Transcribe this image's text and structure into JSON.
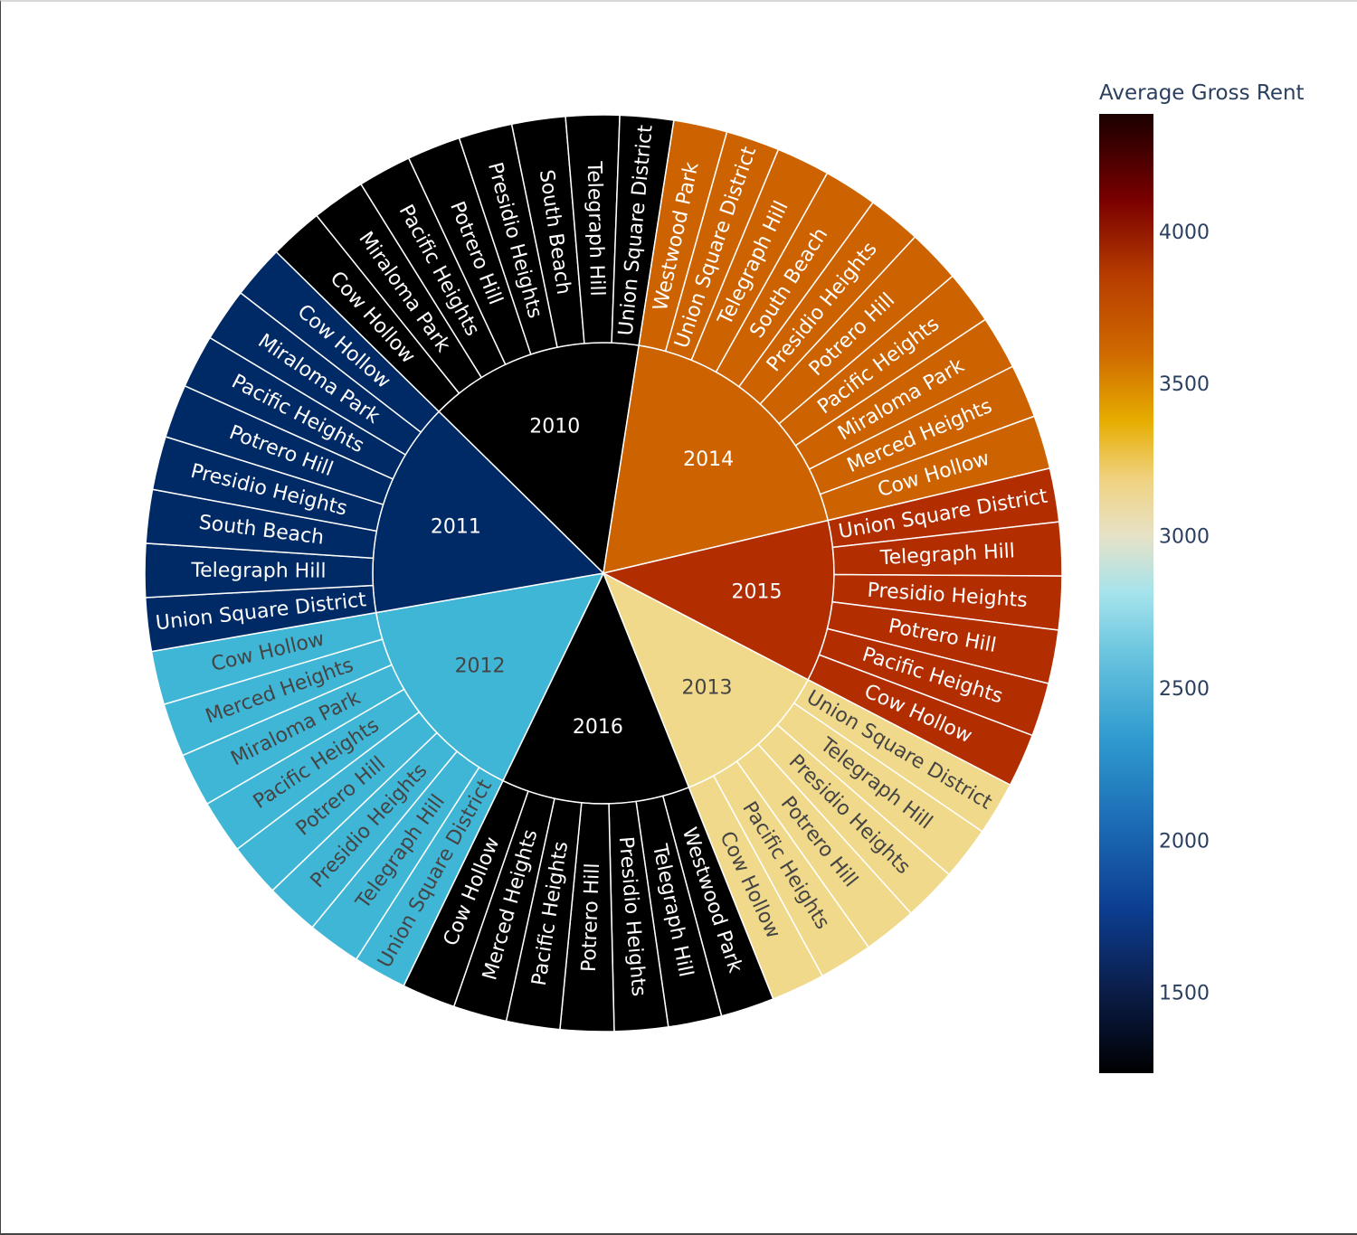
{
  "chart_data": {
    "type": "sunburst",
    "colorbar": {
      "title": "Average Gross Rent",
      "range": [
        1239,
        4390
      ],
      "ticks": [
        1500,
        2000,
        2500,
        3000,
        3500,
        4000
      ],
      "colorscale": [
        [
          0.0,
          "#000000"
        ],
        [
          0.09,
          "#0b1f4d"
        ],
        [
          0.17,
          "#0c3d8f"
        ],
        [
          0.26,
          "#1c6bb5"
        ],
        [
          0.35,
          "#2f9bcf"
        ],
        [
          0.44,
          "#6cc6df"
        ],
        [
          0.5,
          "#a5e3ec"
        ],
        [
          0.56,
          "#e6e2c7"
        ],
        [
          0.62,
          "#f0d27f"
        ],
        [
          0.68,
          "#e6ad00"
        ],
        [
          0.75,
          "#cf6a00"
        ],
        [
          0.83,
          "#b83d00"
        ],
        [
          0.91,
          "#7a0000"
        ],
        [
          1.0,
          "#1a0000"
        ]
      ]
    },
    "order": [
      "2010",
      "2014",
      "2015",
      "2013",
      "2016",
      "2012",
      "2011"
    ],
    "years": [
      {
        "label": "2010",
        "value": 1239,
        "color": "#000000",
        "text_color": "#ffffff",
        "children": [
          "Cow Hollow",
          "Miraloma Park",
          "Pacific Heights",
          "Potrero Hill",
          "Presidio Heights",
          "South Beach",
          "Telegraph Hill",
          "Union Square District"
        ]
      },
      {
        "label": "2014",
        "value": 3450,
        "color": "#cc6300",
        "text_color": "#ffffff",
        "children": [
          "Westwood Park",
          "Union Square District",
          "Telegraph Hill",
          "South Beach",
          "Presidio Heights",
          "Potrero Hill",
          "Pacific Heights",
          "Miraloma Park",
          "Merced Heights",
          "Cow Hollow"
        ]
      },
      {
        "label": "2015",
        "value": 3740,
        "color": "#b22d00",
        "text_color": "#ffffff",
        "children": [
          "Union Square District",
          "Telegraph Hill",
          "Presidio Heights",
          "Potrero Hill",
          "Pacific Heights",
          "Cow Hollow"
        ]
      },
      {
        "label": "2013",
        "value": 2970,
        "color": "#f0d98a",
        "text_color": "#444444",
        "children": [
          "Union Square District",
          "Telegraph Hill",
          "Presidio Heights",
          "Potrero Hill",
          "Pacific Heights",
          "Cow Hollow"
        ]
      },
      {
        "label": "2016",
        "value": 1239,
        "color": "#000000",
        "text_color": "#ffffff",
        "children": [
          "Westwood Park",
          "Telegraph Hill",
          "Presidio Heights",
          "Potrero Hill",
          "Pacific Heights",
          "Merced Heights",
          "Cow Hollow"
        ]
      },
      {
        "label": "2012",
        "value": 2320,
        "color": "#40b6d6",
        "text_color": "#444444",
        "children": [
          "Union Square District",
          "Telegraph Hill",
          "Presidio Heights",
          "Potrero Hill",
          "Pacific Heights",
          "Miraloma Park",
          "Merced Heights",
          "Cow Hollow"
        ]
      },
      {
        "label": "2011",
        "value": 1530,
        "color": "#002a66",
        "text_color": "#ffffff",
        "children": [
          "Union Square District",
          "Telegraph Hill",
          "South Beach",
          "Presidio Heights",
          "Potrero Hill",
          "Pacific Heights",
          "Miraloma Park",
          "Cow Hollow"
        ]
      }
    ]
  }
}
